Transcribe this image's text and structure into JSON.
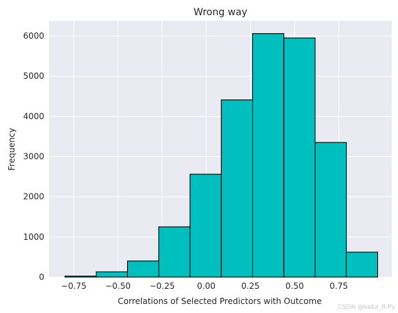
{
  "chart_data": {
    "type": "bar",
    "title": "Wrong way",
    "xlabel": "Correlations of Selected Predictors with Outcome",
    "ylabel": "Frequency",
    "xlim": [
      -0.89,
      1.05
    ],
    "ylim": [
      0,
      6380
    ],
    "xticks": [
      -0.75,
      -0.5,
      -0.25,
      0.0,
      0.25,
      0.5,
      0.75
    ],
    "xtick_labels": [
      "−0.75",
      "−0.50",
      "−0.25",
      "0.00",
      "0.25",
      "0.50",
      "0.75"
    ],
    "yticks": [
      0,
      1000,
      2000,
      3000,
      4000,
      5000,
      6000
    ],
    "ytick_labels": [
      "0",
      "1000",
      "2000",
      "3000",
      "4000",
      "5000",
      "6000"
    ],
    "bin_edges": [
      -0.8,
      -0.623,
      -0.446,
      -0.269,
      -0.092,
      0.085,
      0.262,
      0.439,
      0.616,
      0.793,
      0.97
    ],
    "values": [
      25,
      130,
      400,
      1250,
      2560,
      4410,
      6060,
      5950,
      3350,
      620
    ],
    "bar_color": "#00BFBF",
    "edge_color": "#000000",
    "background_color": "#EAEAF2",
    "grid": true
  },
  "watermark": "CSDN @kaka_R-Py"
}
